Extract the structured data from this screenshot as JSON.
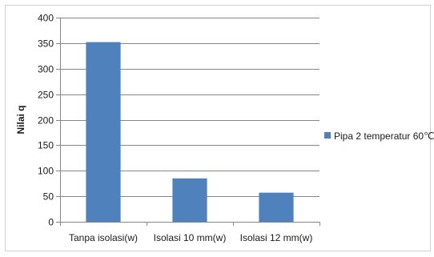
{
  "chart_data": {
    "type": "bar",
    "categories": [
      "Tanpa isolasi(w)",
      "Isolasi 10 mm(w)",
      "Isolasi 12 mm(w)"
    ],
    "series": [
      {
        "name": "Pipa 2 temperatur 60℃",
        "values": [
          352,
          85,
          57
        ],
        "color": "#4f81bd"
      }
    ],
    "title": "",
    "xlabel": "",
    "ylabel": "Nilai q",
    "ylim": [
      0,
      400
    ],
    "yticks": [
      0,
      50,
      100,
      150,
      200,
      250,
      300,
      350,
      400
    ],
    "grid": true,
    "legend_position": "right"
  }
}
